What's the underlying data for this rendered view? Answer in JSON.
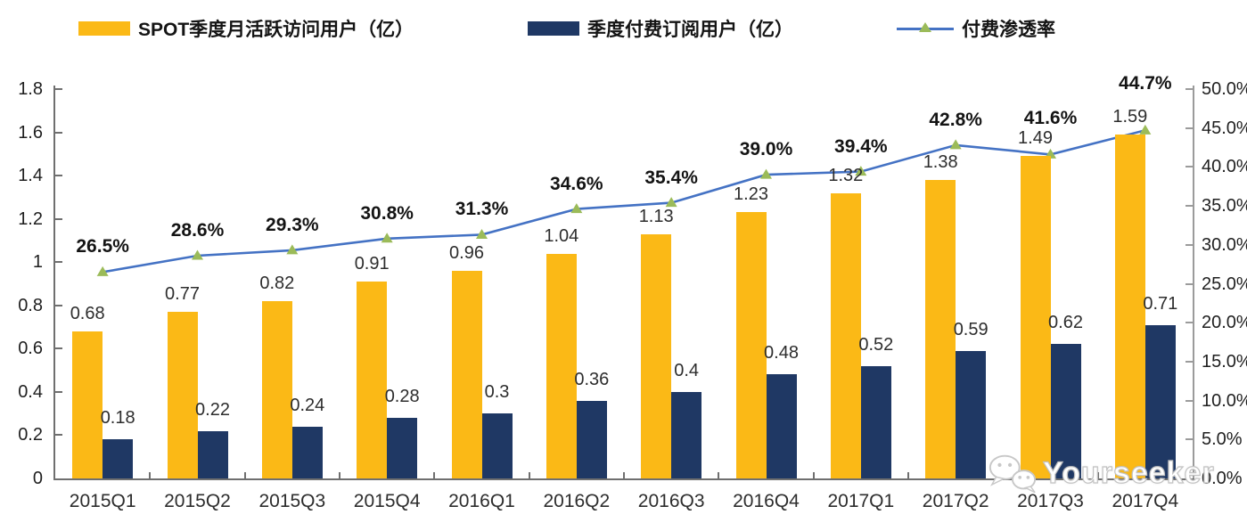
{
  "watermark": {
    "text": "Yourseeker",
    "icon": "wechat-icon"
  },
  "chart_data": {
    "type": "bar+line",
    "title": "",
    "categories": [
      "2015Q1",
      "2015Q2",
      "2015Q3",
      "2015Q4",
      "2016Q1",
      "2016Q2",
      "2016Q3",
      "2016Q4",
      "2017Q1",
      "2017Q2",
      "2017Q3",
      "2017Q4"
    ],
    "series": [
      {
        "name": "SPOT季度月活跃访问用户（亿）",
        "type": "bar",
        "axis": "left",
        "color": "#FBB916",
        "values": [
          0.68,
          0.77,
          0.82,
          0.91,
          0.96,
          1.04,
          1.13,
          1.23,
          1.32,
          1.38,
          1.49,
          1.59
        ],
        "labels": [
          "0.68",
          "0.77",
          "0.82",
          "0.91",
          "0.96",
          "1.04",
          "1.13",
          "1.23",
          "1.32",
          "1.38",
          "1.49",
          "1.59"
        ]
      },
      {
        "name": "季度付费订阅用户（亿）",
        "type": "bar",
        "axis": "left",
        "color": "#1F3864",
        "values": [
          0.18,
          0.22,
          0.24,
          0.28,
          0.3,
          0.36,
          0.4,
          0.48,
          0.52,
          0.59,
          0.62,
          0.71
        ],
        "labels": [
          "0.18",
          "0.22",
          "0.24",
          "0.28",
          "0.3",
          "0.36",
          "0.4",
          "0.48",
          "0.52",
          "0.59",
          "0.62",
          "0.71"
        ]
      },
      {
        "name": "付费渗透率",
        "type": "line",
        "axis": "right",
        "color": "#4472C4",
        "marker_color": "#9BBB59",
        "values": [
          26.5,
          28.6,
          29.3,
          30.8,
          31.3,
          34.6,
          35.4,
          39.0,
          39.4,
          42.8,
          41.6,
          44.7
        ],
        "labels": [
          "26.5%",
          "28.6%",
          "29.3%",
          "30.8%",
          "31.3%",
          "34.6%",
          "35.4%",
          "39.0%",
          "39.4%",
          "42.8%",
          "41.6%",
          "44.7%"
        ]
      }
    ],
    "left_axis": {
      "min": 0,
      "max": 1.8,
      "step": 0.2,
      "ticks": [
        "0",
        "0.2",
        "0.4",
        "0.6",
        "0.8",
        "1",
        "1.2",
        "1.4",
        "1.6",
        "1.8"
      ]
    },
    "right_axis": {
      "min": 0,
      "max": 50,
      "step": 5,
      "ticks": [
        "0.0%",
        "5.0%",
        "10.0%",
        "15.0%",
        "20.0%",
        "25.0%",
        "30.0%",
        "35.0%",
        "40.0%",
        "45.0%",
        "50.0%"
      ]
    },
    "grid": false,
    "legend_position": "top"
  }
}
